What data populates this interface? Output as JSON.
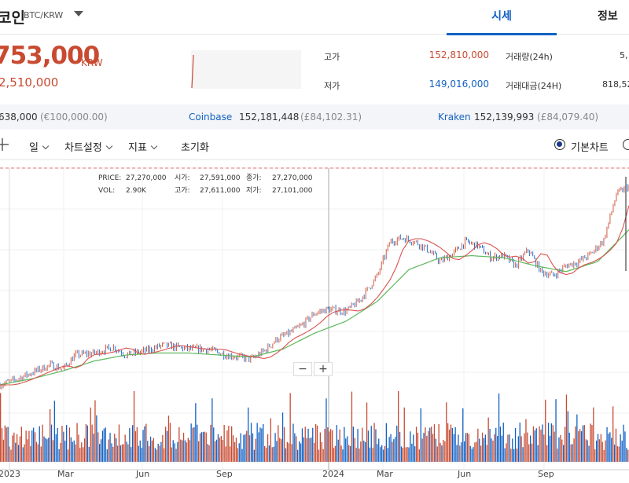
{
  "header": {
    "coin_title": "코인",
    "pair": "BTC/KRW",
    "tabs": {
      "quote": "시세",
      "info": "정보"
    }
  },
  "price": {
    "current": "753,000",
    "unit": "KRW",
    "change": "2,510,000"
  },
  "stats": {
    "high_label": "고가",
    "high_value": "152,810,000",
    "low_label": "저가",
    "low_value": "149,016,000",
    "volume_label": "거래량(24h)",
    "volume_value": "5,",
    "amount_label": "거래대금(24H)",
    "amount_value": "818,52"
  },
  "exchanges": {
    "first_price": "638,000",
    "first_fx": "(€100,000.00)",
    "coinbase_name": "Coinbase",
    "coinbase_price": "152,181,448",
    "coinbase_fx": "(£84,102.31)",
    "kraken_name": "Kraken",
    "kraken_price": "152,139,993",
    "kraken_fx": "(£84,079.40)"
  },
  "toolbar": {
    "period": "일",
    "chart_settings": "차트설정",
    "indicator": "지표",
    "reset": "초기화",
    "basic_chart": "기본차트"
  },
  "tooltip": {
    "price_label": "PRICE:",
    "price_value": "27,270,000",
    "open_label": "시가:",
    "open_value": "27,591,000",
    "close_label": "종가:",
    "close_value": "27,270,000",
    "vol_label": "VOL:",
    "vol_value": "2.90K",
    "high_label": "고가:",
    "high_value": "27,611,000",
    "low_label": "저가:",
    "low_value": "27,101,000"
  },
  "zoom": {
    "minus": "−",
    "plus": "+"
  },
  "colors": {
    "up": "#c84a31",
    "down": "#1261c4",
    "accent": "#1261c4",
    "ma_short": "#d9534f",
    "ma_long": "#5cb85c"
  },
  "chart_data": {
    "type": "line",
    "x_tick_labels": [
      "2023",
      "Mar",
      "Jun",
      "Sep",
      "2024",
      "Mar",
      "Jun",
      "Sep"
    ],
    "price_series": [
      [
        0,
        0.0
      ],
      [
        0.02,
        0.02
      ],
      [
        0.05,
        0.06
      ],
      [
        0.08,
        0.1
      ],
      [
        0.1,
        0.08
      ],
      [
        0.12,
        0.15
      ],
      [
        0.15,
        0.16
      ],
      [
        0.18,
        0.19
      ],
      [
        0.2,
        0.15
      ],
      [
        0.23,
        0.17
      ],
      [
        0.26,
        0.2
      ],
      [
        0.3,
        0.18
      ],
      [
        0.33,
        0.18
      ],
      [
        0.36,
        0.15
      ],
      [
        0.38,
        0.14
      ],
      [
        0.4,
        0.13
      ],
      [
        0.42,
        0.17
      ],
      [
        0.44,
        0.23
      ],
      [
        0.46,
        0.26
      ],
      [
        0.48,
        0.3
      ],
      [
        0.5,
        0.36
      ],
      [
        0.52,
        0.38
      ],
      [
        0.55,
        0.37
      ],
      [
        0.57,
        0.42
      ],
      [
        0.58,
        0.46
      ],
      [
        0.6,
        0.55
      ],
      [
        0.62,
        0.72
      ],
      [
        0.64,
        0.74
      ],
      [
        0.66,
        0.72
      ],
      [
        0.68,
        0.68
      ],
      [
        0.7,
        0.62
      ],
      [
        0.72,
        0.66
      ],
      [
        0.74,
        0.72
      ],
      [
        0.76,
        0.7
      ],
      [
        0.78,
        0.64
      ],
      [
        0.8,
        0.65
      ],
      [
        0.82,
        0.6
      ],
      [
        0.84,
        0.68
      ],
      [
        0.86,
        0.57
      ],
      [
        0.88,
        0.55
      ],
      [
        0.9,
        0.6
      ],
      [
        0.92,
        0.62
      ],
      [
        0.94,
        0.66
      ],
      [
        0.96,
        0.73
      ],
      [
        0.98,
        0.96
      ],
      [
        1.0,
        1.0
      ]
    ],
    "ma_long_series": [
      [
        0,
        0.0
      ],
      [
        0.05,
        0.03
      ],
      [
        0.1,
        0.07
      ],
      [
        0.15,
        0.12
      ],
      [
        0.2,
        0.15
      ],
      [
        0.25,
        0.16
      ],
      [
        0.3,
        0.16
      ],
      [
        0.35,
        0.15
      ],
      [
        0.4,
        0.14
      ],
      [
        0.45,
        0.18
      ],
      [
        0.5,
        0.26
      ],
      [
        0.55,
        0.32
      ],
      [
        0.6,
        0.42
      ],
      [
        0.65,
        0.58
      ],
      [
        0.7,
        0.64
      ],
      [
        0.75,
        0.65
      ],
      [
        0.8,
        0.64
      ],
      [
        0.85,
        0.6
      ],
      [
        0.9,
        0.57
      ],
      [
        0.95,
        0.62
      ],
      [
        1.0,
        0.78
      ]
    ],
    "volume_note": "daily volume bars in red/blue below price chart",
    "grid": true,
    "horizontal_reference": "dashed line near top of chart"
  }
}
